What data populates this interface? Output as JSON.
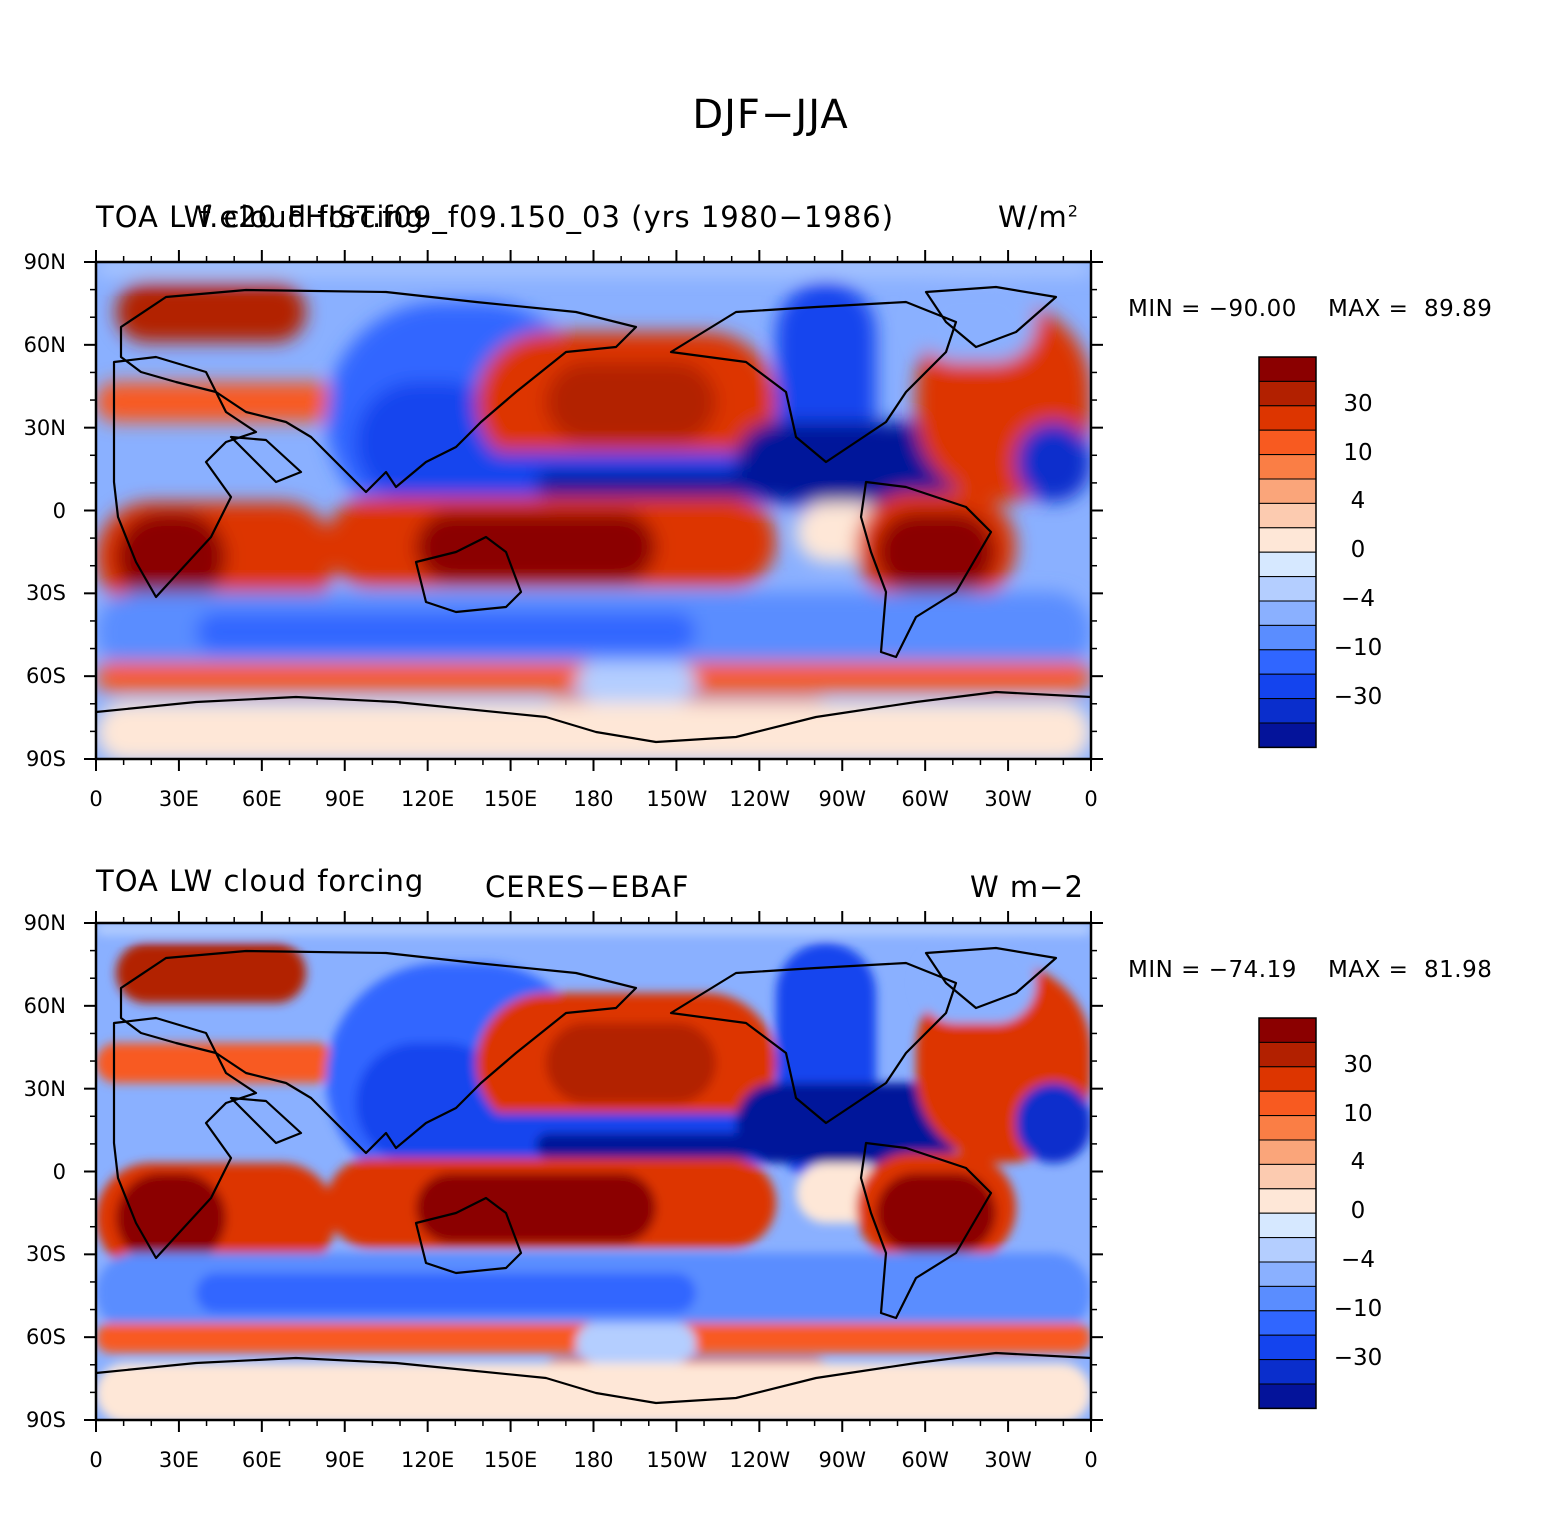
{
  "figure": {
    "title": "DJF−JJA"
  },
  "colorbar": {
    "colors": [
      "#8b0000",
      "#b22000",
      "#dd3500",
      "#f85a20",
      "#fa7e45",
      "#faa57a",
      "#fccbb0",
      "#fee7d7",
      "#d6e8ff",
      "#b4ceff",
      "#8ab0ff",
      "#5a8dff",
      "#3066ff",
      "#1444ee",
      "#0a2ecc",
      "#04139a"
    ],
    "labels": [
      "30",
      "10",
      "4",
      "0",
      "−4",
      "−10",
      "−30"
    ]
  },
  "axes": {
    "lon_labels": [
      "0",
      "30E",
      "60E",
      "90E",
      "120E",
      "150E",
      "180",
      "150W",
      "120W",
      "90W",
      "60W",
      "30W",
      "0"
    ],
    "lat_labels": [
      "90N",
      "60N",
      "30N",
      "0",
      "30S",
      "60S",
      "90S"
    ]
  },
  "panels": [
    {
      "left_label": "TOA LW cloud forcing",
      "center_label": "f.e20.FHIST.f09_f09.150_03 (yrs 1980−1986)",
      "right_label": "W/m",
      "right_label_sup": "2",
      "min_text": "MIN = −90.00",
      "max_text": "MAX =  89.89"
    },
    {
      "left_label": "TOA LW cloud forcing",
      "center_label": "CERES−EBAF",
      "right_label": "W m−2",
      "min_text": "MIN = −74.19",
      "max_text": "MAX =  81.98"
    }
  ]
}
